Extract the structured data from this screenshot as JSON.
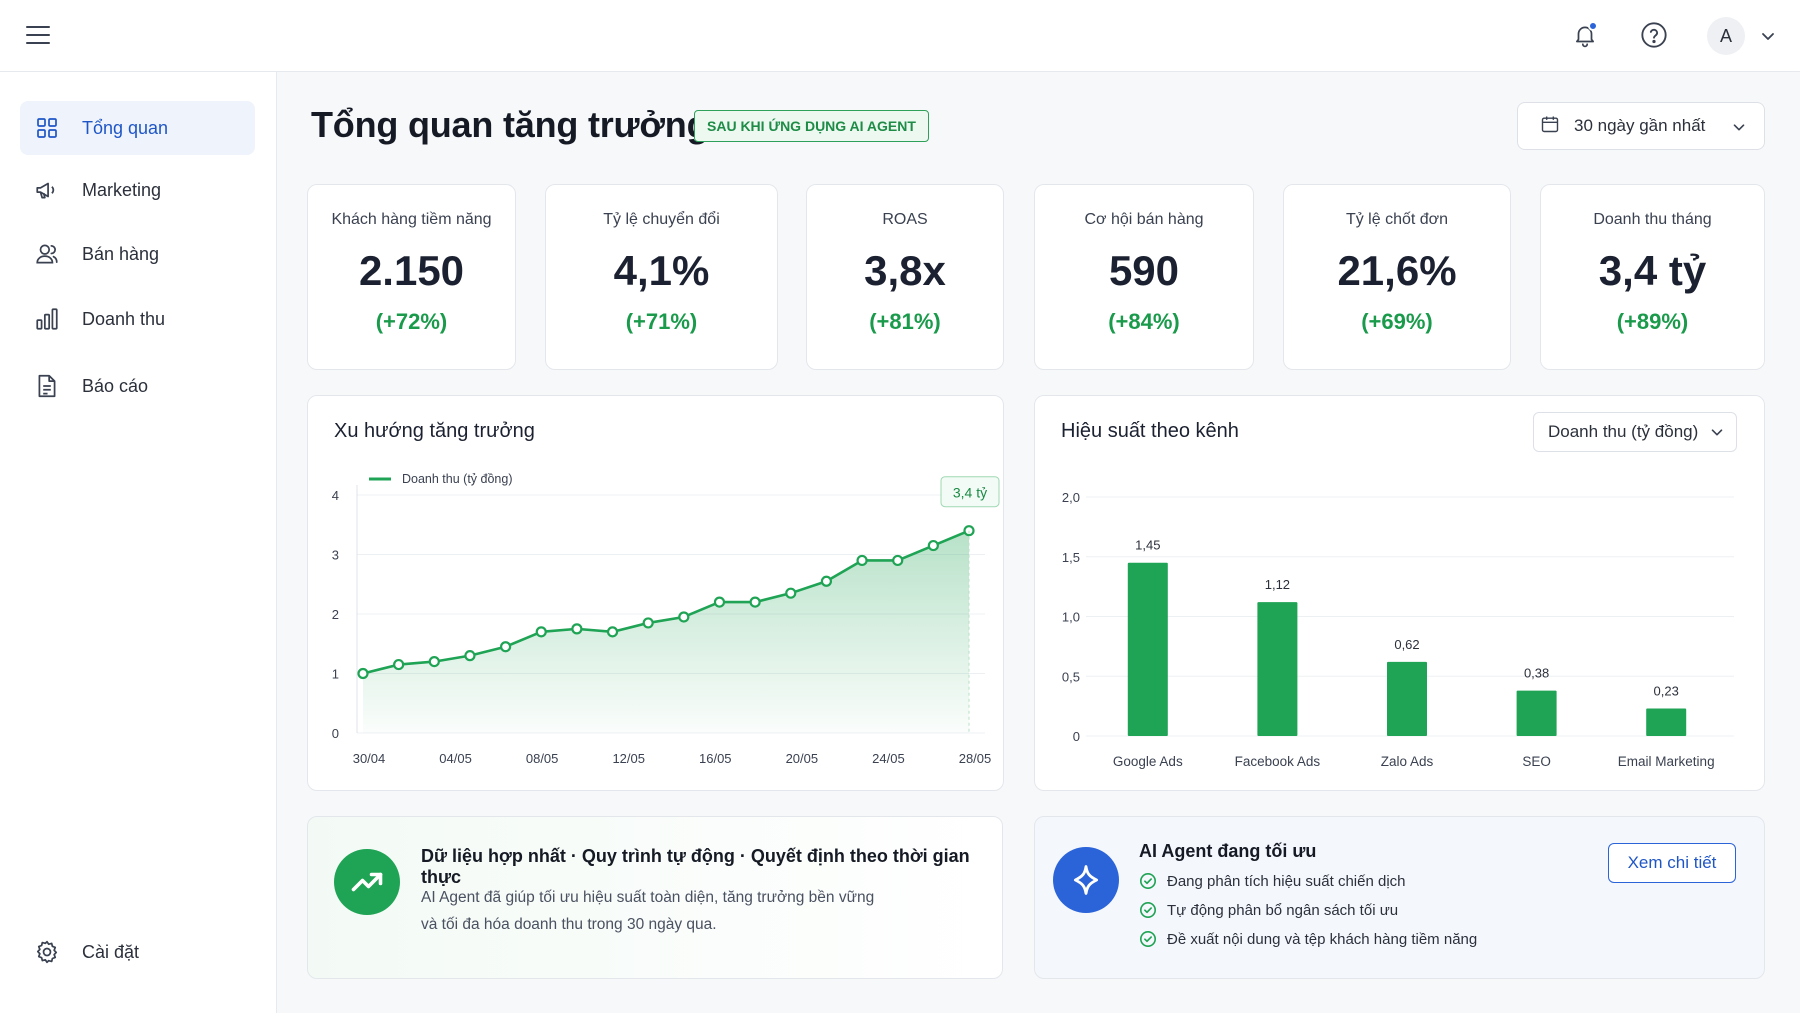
{
  "header": {
    "menu_icon": "hamburger-icon",
    "notification_icon": "bell-icon",
    "help_icon": "help-circle-icon",
    "avatar_initial": "A"
  },
  "sidebar": {
    "items": [
      {
        "label": "Tổng quan",
        "icon": "grid-icon",
        "active": true
      },
      {
        "label": "Marketing",
        "icon": "megaphone-icon",
        "active": false
      },
      {
        "label": "Bán hàng",
        "icon": "users-icon",
        "active": false
      },
      {
        "label": "Doanh thu",
        "icon": "bar-chart-icon",
        "active": false
      },
      {
        "label": "Báo cáo",
        "icon": "document-icon",
        "active": false
      }
    ],
    "settings_label": "Cài đặt"
  },
  "page": {
    "title": "Tổng quan tăng trưởng",
    "badge": "SAU KHI ỨNG DỤNG AI AGENT",
    "date_range": "30 ngày gần nhất"
  },
  "kpis": [
    {
      "label": "Khách hàng tiềm năng",
      "value": "2.150",
      "delta": "(+72%)"
    },
    {
      "label": "Tỷ lệ chuyển đổi",
      "value": "4,1%",
      "delta": "(+71%)"
    },
    {
      "label": "ROAS",
      "value": "3,8x",
      "delta": "(+81%)"
    },
    {
      "label": "Cơ hội bán hàng",
      "value": "590",
      "delta": "(+84%)"
    },
    {
      "label": "Tỷ lệ chốt đơn",
      "value": "21,6%",
      "delta": "(+69%)"
    },
    {
      "label": "Doanh thu tháng",
      "value": "3,4 tỷ",
      "delta": "(+89%)"
    }
  ],
  "trend_panel": {
    "title": "Xu hướng tăng trưởng"
  },
  "channel_panel": {
    "title": "Hiệu suất theo kênh",
    "metric_select": "Doanh thu (tỷ đồng)"
  },
  "colors": {
    "accent_green": "#1fa354",
    "accent_blue": "#2b63d9"
  },
  "chart_data": [
    {
      "type": "line",
      "title": "Xu hướng tăng trưởng",
      "series": [
        {
          "name": "Doanh thu (tỷ đồng)",
          "values": [
            1.0,
            1.15,
            1.2,
            1.3,
            1.45,
            1.7,
            1.75,
            1.7,
            1.85,
            1.95,
            2.2,
            2.2,
            2.35,
            2.55,
            2.9,
            2.9,
            3.15,
            3.4
          ]
        }
      ],
      "x_ticks": [
        "30/04",
        "04/05",
        "08/05",
        "12/05",
        "16/05",
        "20/05",
        "24/05",
        "28/05"
      ],
      "ylim": [
        0,
        4
      ],
      "y_ticks": [
        "0",
        "1",
        "2",
        "3",
        "4"
      ],
      "callout": "3,4 tỷ",
      "grid": true,
      "legend": "top-left"
    },
    {
      "type": "bar",
      "title": "Hiệu suất theo kênh",
      "categories": [
        "Google Ads",
        "Facebook Ads",
        "Zalo Ads",
        "SEO",
        "Email Marketing"
      ],
      "values": [
        1.45,
        1.12,
        0.62,
        0.38,
        0.23
      ],
      "value_labels": [
        "1,45",
        "1,12",
        "0,62",
        "0,38",
        "0,23"
      ],
      "ylim": [
        0,
        2.0
      ],
      "y_ticks": [
        "0",
        "0,5",
        "1,0",
        "1,5",
        "2,0"
      ],
      "grid": true
    }
  ],
  "banners": {
    "data": {
      "title": "Dữ liệu hợp nhất · Quy trình tự động · Quyết định theo thời gian thực",
      "line1": "AI Agent đã giúp tối ưu hiệu suất toàn diện, tăng trưởng bền vững",
      "line2": "và tối đa hóa doanh thu trong 30 ngày qua.",
      "icon": "trending-up-icon"
    },
    "agent": {
      "title": "AI Agent đang tối ưu",
      "items": [
        "Đang phân tích hiệu suất chiến dịch",
        "Tự động phân bổ ngân sách tối ưu",
        "Đề xuất nội dung và tệp khách hàng tiềm năng"
      ],
      "button": "Xem chi tiết",
      "icon": "sparkle-icon"
    }
  }
}
